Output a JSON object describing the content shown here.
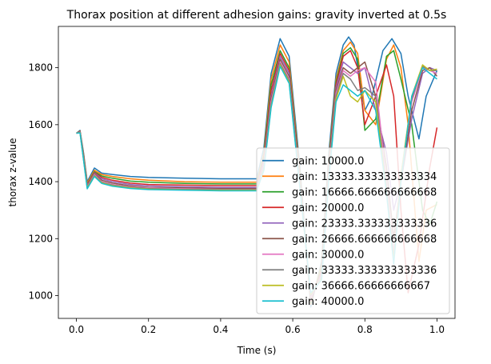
{
  "chart_data": {
    "type": "line",
    "title": "Thorax position at different adhesion gains: gravity inverted at 0.5s",
    "xlabel": "Time (s)",
    "ylabel": "thorax z-value",
    "xlim": [
      -0.05,
      1.05
    ],
    "ylim": [
      920,
      1945
    ],
    "xticks": [
      0.0,
      0.2,
      0.4,
      0.6,
      0.8,
      1.0
    ],
    "xtick_labels": [
      "0.0",
      "0.2",
      "0.4",
      "0.6",
      "0.8",
      "1.0"
    ],
    "yticks": [
      1000,
      1200,
      1400,
      1600,
      1800
    ],
    "ytick_labels": [
      "1000",
      "1200",
      "1400",
      "1600",
      "1800"
    ],
    "grid": false,
    "legend_position": "lower-right",
    "series": [
      {
        "name": "gain: 10000.0",
        "color": "#1f77b4",
        "x": [
          0.0,
          0.01,
          0.02,
          0.03,
          0.05,
          0.07,
          0.1,
          0.15,
          0.2,
          0.3,
          0.4,
          0.5,
          0.52,
          0.54,
          0.565,
          0.59,
          0.62,
          0.65,
          0.68,
          0.7,
          0.72,
          0.74,
          0.755,
          0.77,
          0.8,
          0.82,
          0.85,
          0.875,
          0.9,
          0.92,
          0.95,
          0.97,
          1.0
        ],
        "y": [
          1570,
          1580,
          1500,
          1400,
          1448,
          1430,
          1425,
          1418,
          1415,
          1412,
          1410,
          1410,
          1520,
          1780,
          1902,
          1840,
          1450,
          960,
          1120,
          1500,
          1780,
          1880,
          1908,
          1880,
          1650,
          1700,
          1860,
          1902,
          1850,
          1700,
          1550,
          1700,
          1790
        ]
      },
      {
        "name": "gain: 13333.333333333334",
        "color": "#ff7f0e",
        "x": [
          0.0,
          0.01,
          0.02,
          0.03,
          0.05,
          0.07,
          0.1,
          0.15,
          0.2,
          0.3,
          0.4,
          0.5,
          0.52,
          0.54,
          0.565,
          0.59,
          0.62,
          0.65,
          0.68,
          0.7,
          0.72,
          0.74,
          0.76,
          0.78,
          0.8,
          0.83,
          0.86,
          0.88,
          0.9,
          0.92,
          0.95,
          0.97,
          1.0
        ],
        "y": [
          1570,
          1578,
          1495,
          1395,
          1440,
          1425,
          1418,
          1410,
          1405,
          1400,
          1398,
          1398,
          1500,
          1760,
          1880,
          1820,
          1430,
          970,
          1110,
          1480,
          1760,
          1860,
          1890,
          1850,
          1650,
          1600,
          1830,
          1880,
          1800,
          1600,
          1120,
          1300,
          1320
        ]
      },
      {
        "name": "gain: 16666.666666666668",
        "color": "#2ca02c",
        "x": [
          0.0,
          0.01,
          0.02,
          0.03,
          0.05,
          0.07,
          0.1,
          0.15,
          0.2,
          0.3,
          0.4,
          0.5,
          0.52,
          0.54,
          0.565,
          0.59,
          0.62,
          0.65,
          0.68,
          0.7,
          0.72,
          0.74,
          0.76,
          0.78,
          0.8,
          0.83,
          0.86,
          0.88,
          0.9,
          0.93,
          0.96,
          0.98,
          1.0
        ],
        "y": [
          1570,
          1578,
          1490,
          1390,
          1435,
          1420,
          1412,
          1402,
          1398,
          1394,
          1392,
          1392,
          1490,
          1740,
          1860,
          1800,
          1420,
          975,
          1100,
          1470,
          1750,
          1850,
          1870,
          1830,
          1580,
          1620,
          1840,
          1860,
          1760,
          1600,
          1300,
          1250,
          1330
        ]
      },
      {
        "name": "gain: 20000.0",
        "color": "#d62728",
        "x": [
          0.0,
          0.01,
          0.02,
          0.03,
          0.05,
          0.07,
          0.1,
          0.15,
          0.2,
          0.3,
          0.4,
          0.5,
          0.52,
          0.54,
          0.565,
          0.59,
          0.62,
          0.65,
          0.68,
          0.7,
          0.72,
          0.74,
          0.76,
          0.78,
          0.8,
          0.83,
          0.86,
          0.88,
          0.9,
          0.92,
          0.95,
          0.98,
          1.0
        ],
        "y": [
          1570,
          1577,
          1488,
          1388,
          1432,
          1415,
          1405,
          1395,
          1390,
          1388,
          1386,
          1386,
          1480,
          1720,
          1850,
          1790,
          1410,
          980,
          1090,
          1460,
          1740,
          1840,
          1860,
          1800,
          1600,
          1700,
          1810,
          1700,
          1300,
          1010,
          1180,
          1450,
          1590
        ]
      },
      {
        "name": "gain: 23333.333333333336",
        "color": "#9467bd",
        "x": [
          0.0,
          0.01,
          0.02,
          0.03,
          0.05,
          0.07,
          0.1,
          0.15,
          0.2,
          0.3,
          0.4,
          0.5,
          0.52,
          0.54,
          0.565,
          0.59,
          0.62,
          0.65,
          0.68,
          0.7,
          0.72,
          0.74,
          0.76,
          0.78,
          0.8,
          0.83,
          0.86,
          0.88,
          0.9,
          0.93,
          0.96,
          0.98,
          1.0
        ],
        "y": [
          1570,
          1576,
          1485,
          1386,
          1430,
          1410,
          1400,
          1390,
          1385,
          1382,
          1380,
          1380,
          1470,
          1700,
          1840,
          1780,
          1400,
          985,
          1080,
          1450,
          1730,
          1820,
          1800,
          1780,
          1800,
          1650,
          1500,
          1300,
          1400,
          1620,
          1780,
          1800,
          1790
        ]
      },
      {
        "name": "gain: 26666.666666666668",
        "color": "#8c564b",
        "x": [
          0.0,
          0.01,
          0.02,
          0.03,
          0.05,
          0.07,
          0.1,
          0.15,
          0.2,
          0.3,
          0.4,
          0.5,
          0.52,
          0.54,
          0.565,
          0.59,
          0.62,
          0.65,
          0.68,
          0.7,
          0.72,
          0.74,
          0.76,
          0.78,
          0.8,
          0.83,
          0.86,
          0.88,
          0.9,
          0.93,
          0.96,
          0.98,
          1.0
        ],
        "y": [
          1570,
          1575,
          1482,
          1384,
          1428,
          1405,
          1395,
          1385,
          1380,
          1378,
          1376,
          1376,
          1460,
          1690,
          1830,
          1770,
          1395,
          990,
          1075,
          1440,
          1720,
          1800,
          1780,
          1800,
          1820,
          1700,
          1450,
          1200,
          1400,
          1650,
          1790,
          1800,
          1770
        ]
      },
      {
        "name": "gain: 30000.0",
        "color": "#e377c2",
        "x": [
          0.0,
          0.01,
          0.02,
          0.03,
          0.05,
          0.07,
          0.1,
          0.15,
          0.2,
          0.3,
          0.4,
          0.5,
          0.52,
          0.54,
          0.565,
          0.59,
          0.62,
          0.65,
          0.68,
          0.7,
          0.72,
          0.74,
          0.76,
          0.78,
          0.8,
          0.83,
          0.86,
          0.88,
          0.9,
          0.93,
          0.96,
          0.98,
          1.0
        ],
        "y": [
          1570,
          1574,
          1480,
          1382,
          1425,
          1400,
          1390,
          1382,
          1378,
          1375,
          1373,
          1373,
          1455,
          1680,
          1820,
          1760,
          1390,
          995,
          1070,
          1430,
          1710,
          1790,
          1770,
          1790,
          1800,
          1750,
          1400,
          1150,
          1420,
          1680,
          1800,
          1790,
          1780
        ]
      },
      {
        "name": "gain: 33333.333333333336",
        "color": "#7f7f7f",
        "x": [
          0.0,
          0.01,
          0.02,
          0.03,
          0.05,
          0.07,
          0.1,
          0.15,
          0.2,
          0.3,
          0.4,
          0.5,
          0.52,
          0.54,
          0.565,
          0.59,
          0.62,
          0.65,
          0.68,
          0.7,
          0.72,
          0.74,
          0.76,
          0.78,
          0.8,
          0.83,
          0.86,
          0.88,
          0.9,
          0.93,
          0.96,
          0.98,
          1.0
        ],
        "y": [
          1570,
          1573,
          1478,
          1380,
          1422,
          1398,
          1388,
          1380,
          1376,
          1373,
          1372,
          1372,
          1450,
          1670,
          1815,
          1755,
          1385,
          1000,
          1065,
          1420,
          1700,
          1780,
          1760,
          1720,
          1730,
          1700,
          1380,
          1130,
          1420,
          1690,
          1805,
          1790,
          1790
        ]
      },
      {
        "name": "gain: 36666.66666666667",
        "color": "#bcbd22",
        "x": [
          0.0,
          0.01,
          0.02,
          0.03,
          0.05,
          0.07,
          0.1,
          0.15,
          0.2,
          0.3,
          0.4,
          0.5,
          0.52,
          0.54,
          0.565,
          0.59,
          0.62,
          0.65,
          0.68,
          0.7,
          0.72,
          0.74,
          0.76,
          0.78,
          0.8,
          0.83,
          0.86,
          0.88,
          0.9,
          0.93,
          0.96,
          0.98,
          1.0
        ],
        "y": [
          1570,
          1572,
          1476,
          1378,
          1420,
          1396,
          1386,
          1378,
          1374,
          1371,
          1370,
          1370,
          1445,
          1665,
          1810,
          1750,
          1380,
          1005,
          1060,
          1415,
          1690,
          1770,
          1700,
          1680,
          1720,
          1680,
          1370,
          1120,
          1420,
          1700,
          1810,
          1790,
          1795
        ]
      },
      {
        "name": "gain: 40000.0",
        "color": "#17becf",
        "x": [
          0.0,
          0.01,
          0.02,
          0.03,
          0.05,
          0.07,
          0.1,
          0.15,
          0.2,
          0.3,
          0.4,
          0.5,
          0.52,
          0.54,
          0.565,
          0.59,
          0.62,
          0.65,
          0.68,
          0.7,
          0.72,
          0.74,
          0.76,
          0.78,
          0.8,
          0.83,
          0.86,
          0.88,
          0.9,
          0.93,
          0.96,
          0.98,
          1.0
        ],
        "y": [
          1570,
          1571,
          1474,
          1375,
          1418,
          1394,
          1384,
          1376,
          1372,
          1370,
          1368,
          1368,
          1440,
          1660,
          1805,
          1745,
          1375,
          1010,
          1055,
          1410,
          1680,
          1740,
          1720,
          1700,
          1720,
          1650,
          1360,
          1110,
          1400,
          1700,
          1800,
          1780,
          1760
        ]
      }
    ]
  }
}
